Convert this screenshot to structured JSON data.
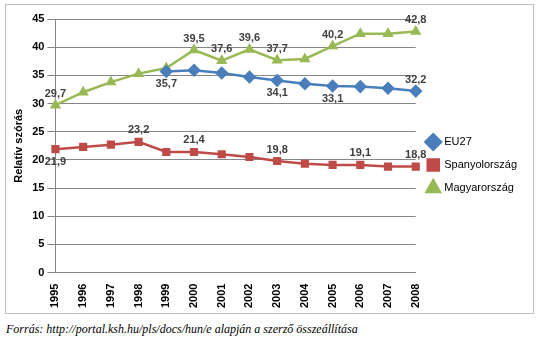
{
  "chart_data": {
    "type": "line",
    "y_label": "Relatív szórás",
    "source": "Forrás: http://portal.ksh.hu/pls/docs/hun/e alapján a szerző összeállítása",
    "categories": [
      "1995",
      "1996",
      "1997",
      "1998",
      "1999",
      "2000",
      "2001",
      "2002",
      "2003",
      "2004",
      "2005",
      "2006",
      "2007",
      "2008"
    ],
    "series": [
      {
        "name": "EU27",
        "color": "#4a7ebb",
        "marker": "diamond",
        "values": [
          null,
          null,
          null,
          null,
          35.7,
          35.9,
          35.4,
          34.7,
          34.1,
          33.5,
          33.1,
          33.0,
          32.7,
          32.2
        ],
        "value_labels": [
          null,
          null,
          null,
          null,
          "35,7",
          null,
          null,
          null,
          "34,1",
          null,
          "33,1",
          null,
          null,
          "32,2"
        ]
      },
      {
        "name": "Spanyolország",
        "color": "#be4b48",
        "marker": "square",
        "values": [
          21.9,
          22.3,
          22.7,
          23.2,
          21.4,
          21.4,
          21.0,
          20.5,
          19.8,
          19.3,
          19.1,
          19.1,
          18.8,
          18.8
        ],
        "value_labels": [
          "21,9",
          null,
          null,
          "23,2",
          null,
          "21,4",
          null,
          null,
          "19,8",
          null,
          null,
          "19,1",
          null,
          "18,8"
        ]
      },
      {
        "name": "Magyarország",
        "color": "#98b954",
        "marker": "triangle",
        "values": [
          29.7,
          32.0,
          33.8,
          35.3,
          36.3,
          39.5,
          37.6,
          39.6,
          37.7,
          37.9,
          40.2,
          42.4,
          42.4,
          42.8
        ],
        "value_labels": [
          "29,7",
          null,
          null,
          null,
          null,
          "39,5",
          "37,6",
          "39,6",
          "37,7",
          null,
          "40,2",
          null,
          null,
          "42,8"
        ]
      }
    ],
    "ylim": [
      0,
      45
    ],
    "yticks": [
      0,
      5,
      10,
      15,
      20,
      25,
      30,
      35,
      40,
      45
    ],
    "grid": true,
    "legend": "right",
    "data_labels": true
  }
}
